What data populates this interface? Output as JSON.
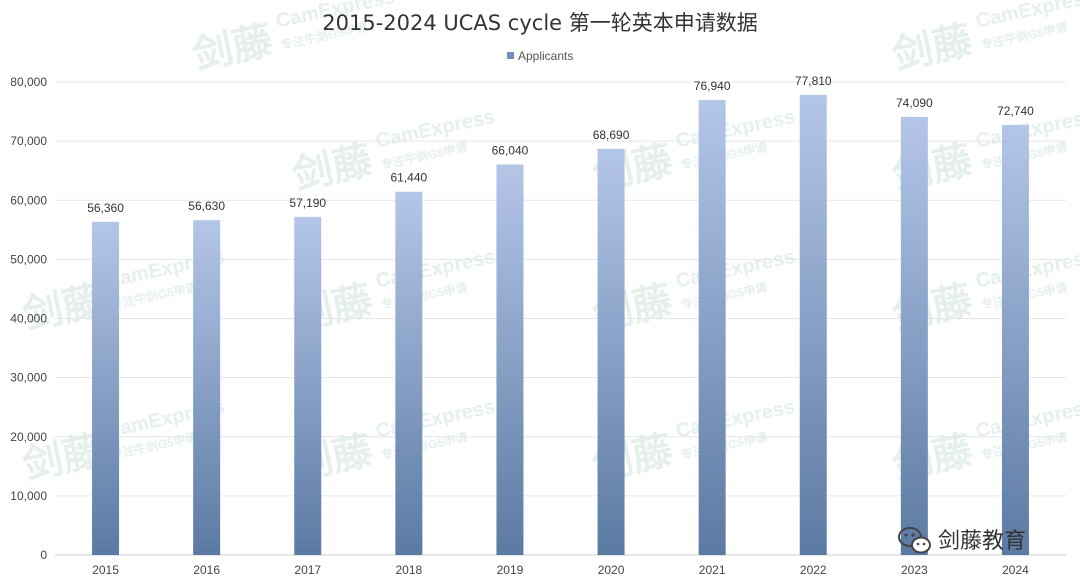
{
  "chart_data": {
    "type": "bar",
    "title": "2015-2024 UCAS cycle 第一轮英本申请数据",
    "legend": [
      "Applicants"
    ],
    "legend_position": "top-center",
    "categories": [
      "2015",
      "2016",
      "2017",
      "2018",
      "2019",
      "2020",
      "2021",
      "2022",
      "2023",
      "2024"
    ],
    "series": [
      {
        "name": "Applicants",
        "values": [
          56360,
          56630,
          57190,
          61440,
          66040,
          68690,
          76940,
          77810,
          74090,
          72740
        ]
      }
    ],
    "data_labels": [
      "56,360",
      "56,630",
      "57,190",
      "61,440",
      "66,040",
      "68,690",
      "76,940",
      "77,810",
      "74,090",
      "72,740"
    ],
    "yticks": [
      "0",
      "10,000",
      "20,000",
      "30,000",
      "40,000",
      "50,000",
      "60,000",
      "70,000",
      "80,000"
    ],
    "ytick_values": [
      0,
      10000,
      20000,
      30000,
      40000,
      50000,
      60000,
      70000,
      80000
    ],
    "ylim": [
      0,
      80000
    ],
    "grid": true,
    "colors": {
      "bar_top": "#b4c6e8",
      "bar_bottom": "#5b7aa3",
      "legend": "#6f8fbf"
    }
  },
  "watermark": {
    "brand_cn": "剑藤",
    "brand_en": "CamExpress",
    "tagline": "专注牛剑G5申请"
  },
  "branding": {
    "icon": "wechat-icon",
    "label": "剑藤教育"
  }
}
